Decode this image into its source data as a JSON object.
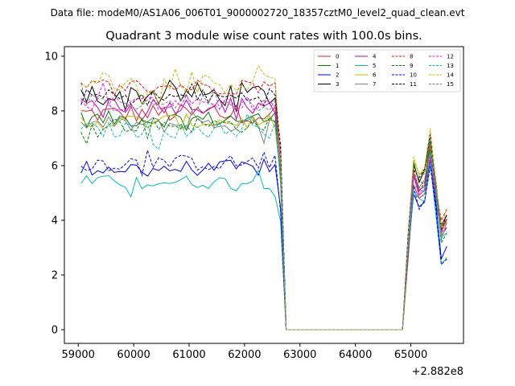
{
  "chart_data": {
    "type": "line",
    "suptitle": "Data file: modeM0/AS1A06_006T01_9000002720_18357cztM0_level2_quad_clean.evt",
    "title": "Quadrant 3 module wise count rates with 100.0s bins.",
    "xlabel": "",
    "ylabel": "",
    "x_offset_label": "+2.882e8",
    "xlim": [
      58750,
      65950
    ],
    "ylim": [
      -0.5,
      10.35
    ],
    "xticks": [
      59000,
      60000,
      61000,
      62000,
      63000,
      64000,
      65000
    ],
    "xtick_labels": [
      "59000",
      "60000",
      "61000",
      "62000",
      "63000",
      "64000",
      "65000"
    ],
    "yticks": [
      0,
      2,
      4,
      6,
      8,
      10
    ],
    "ytick_labels": [
      "0",
      "2",
      "4",
      "6",
      "8",
      "10"
    ],
    "grid": false,
    "legend_position": "upper right",
    "legend_columns": 4,
    "x_start": 59050,
    "bin_width": 100,
    "n_bins": 67,
    "series": [
      {
        "name": "0",
        "color": "#d62728",
        "dash": "solid",
        "base": 7.9,
        "amp": 0.35,
        "spike": 6.2,
        "tail": 4.5
      },
      {
        "name": "1",
        "color": "#008000",
        "dash": "solid",
        "base": 7.7,
        "amp": 0.3,
        "spike": 6.8,
        "tail": 4.2
      },
      {
        "name": "2",
        "color": "#0000ff",
        "dash": "solid",
        "base": 5.9,
        "amp": 0.3,
        "spike": 6.0,
        "tail": 3.3
      },
      {
        "name": "3",
        "color": "#000000",
        "dash": "solid",
        "base": 8.6,
        "amp": 0.45,
        "spike": 7.2,
        "tail": 4.8
      },
      {
        "name": "4",
        "color": "#bf00bf",
        "dash": "solid",
        "base": 8.2,
        "amp": 0.3,
        "spike": 6.4,
        "tail": 4.5
      },
      {
        "name": "5",
        "color": "#00bfbf",
        "dash": "solid",
        "base": 5.4,
        "amp": 0.25,
        "spike": 5.9,
        "tail": 3.0
      },
      {
        "name": "6",
        "color": "#bfbf00",
        "dash": "solid",
        "base": 7.6,
        "amp": 0.3,
        "spike": 7.0,
        "tail": 4.3
      },
      {
        "name": "7",
        "color": "#808080",
        "dash": "solid",
        "base": 7.5,
        "amp": 0.3,
        "spike": 6.6,
        "tail": 4.2
      },
      {
        "name": "8",
        "color": "#ff0000",
        "dash": "dashed",
        "base": 8.9,
        "amp": 0.3,
        "spike": 6.7,
        "tail": 4.9
      },
      {
        "name": "9",
        "color": "#008000",
        "dash": "dashed",
        "base": 7.5,
        "amp": 0.3,
        "spike": 6.9,
        "tail": 4.0
      },
      {
        "name": "10",
        "color": "#0000ff",
        "dash": "dashed",
        "base": 6.1,
        "amp": 0.3,
        "spike": 5.9,
        "tail": 3.0
      },
      {
        "name": "11",
        "color": "#000000",
        "dash": "dashed",
        "base": 8.5,
        "amp": 0.3,
        "spike": 7.1,
        "tail": 4.7
      },
      {
        "name": "12",
        "color": "#ff00ff",
        "dash": "dashed",
        "base": 8.3,
        "amp": 0.3,
        "spike": 6.5,
        "tail": 4.3
      },
      {
        "name": "13",
        "color": "#00bfbf",
        "dash": "dashed",
        "base": 7.3,
        "amp": 0.3,
        "spike": 6.4,
        "tail": 4.0
      },
      {
        "name": "14",
        "color": "#bfbf00",
        "dash": "dashed",
        "base": 9.0,
        "amp": 0.35,
        "spike": 7.2,
        "tail": 4.8
      },
      {
        "name": "15",
        "color": "#808080",
        "dash": "dashed",
        "base": 8.3,
        "amp": 0.3,
        "spike": 6.9,
        "tail": 4.3
      }
    ]
  }
}
